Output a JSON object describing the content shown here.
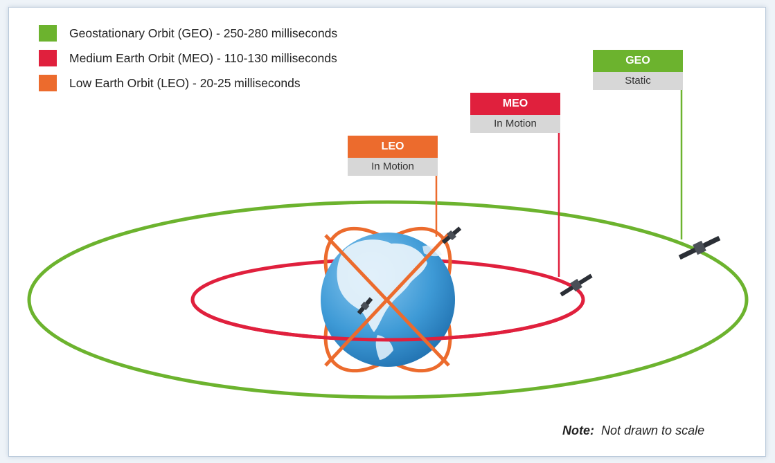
{
  "legend": [
    {
      "name": "Geostationary Orbit (GEO)",
      "sep": " - ",
      "latency": "250-280 milliseconds",
      "color": "#6cb32e"
    },
    {
      "name": "Medium Earth Orbit (MEO)",
      "sep": " - ",
      "latency": "110-130 milliseconds",
      "color": "#e0203d"
    },
    {
      "name": "Low Earth Orbit (LEO)",
      "sep": " - ",
      "latency": "20-25 milliseconds",
      "color": "#ec6b2d"
    }
  ],
  "tags": {
    "geo": {
      "title": "GEO",
      "status": "Static",
      "color": "#6cb32e"
    },
    "meo": {
      "title": "MEO",
      "status": "In Motion",
      "color": "#e0203d"
    },
    "leo": {
      "title": "LEO",
      "status": "In Motion",
      "color": "#ec6b2d"
    }
  },
  "note": {
    "label": "Note:",
    "text": "Not drawn to scale"
  },
  "colors": {
    "earth_ocean": "#3e9ad6",
    "earth_land": "#e8f3fb",
    "satellite": "#2b2f36"
  }
}
